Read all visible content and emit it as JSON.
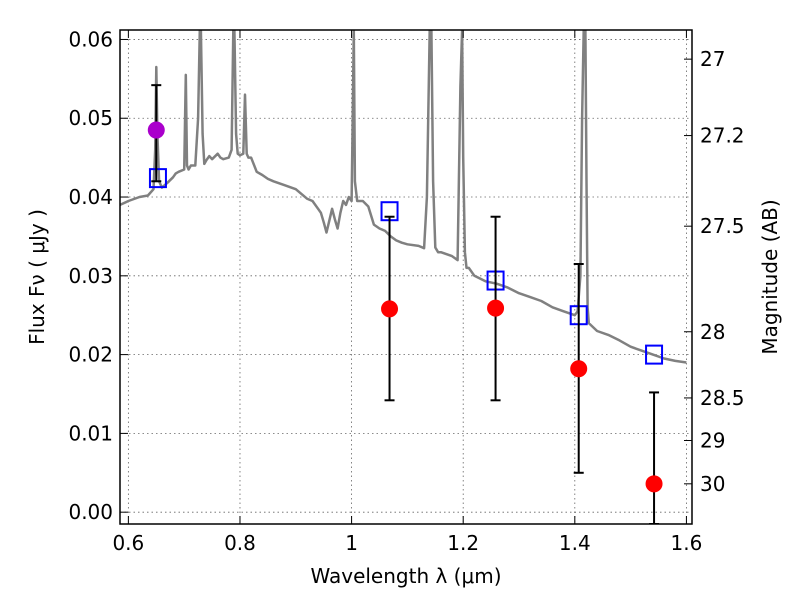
{
  "chart_data": {
    "type": "scatter",
    "title": "",
    "xlabel": "Wavelength  λ (μm)",
    "ylabel": "Flux  Fν  ( μJy )",
    "ylabel_right": "Magnitude (AB)",
    "xlim": [
      0.585,
      1.61
    ],
    "ylim": [
      -0.0015,
      0.0612
    ],
    "grid": true,
    "x_ticks": [
      0.6,
      0.8,
      1.0,
      1.2,
      1.4,
      1.6
    ],
    "x_tick_labels": [
      "0.6",
      "0.8",
      "1",
      "1.2",
      "1.4",
      "1.6"
    ],
    "y_ticks": [
      0.0,
      0.01,
      0.02,
      0.03,
      0.04,
      0.05,
      0.06
    ],
    "y_tick_labels": [
      "0.00",
      "0.01",
      "0.02",
      "0.03",
      "0.04",
      "0.05",
      "0.06"
    ],
    "right_ticks": [
      {
        "flux": 0.0575,
        "label": "27"
      },
      {
        "flux": 0.0478,
        "label": "27.2"
      },
      {
        "flux": 0.0363,
        "label": "27.5"
      },
      {
        "flux": 0.0229,
        "label": "28"
      },
      {
        "flux": 0.0145,
        "label": "28.5"
      },
      {
        "flux": 0.0091,
        "label": "29"
      },
      {
        "flux": 0.0036,
        "label": "30"
      }
    ],
    "series": [
      {
        "kind": "line",
        "color": "#808080",
        "x": [
          0.585,
          0.6,
          0.62,
          0.635,
          0.645,
          0.648,
          0.65,
          0.652,
          0.655,
          0.66,
          0.67,
          0.68,
          0.685,
          0.69,
          0.7,
          0.703,
          0.705,
          0.708,
          0.712,
          0.72,
          0.725,
          0.728,
          0.73,
          0.733,
          0.736,
          0.74,
          0.745,
          0.75,
          0.76,
          0.765,
          0.77,
          0.78,
          0.785,
          0.788,
          0.79,
          0.793,
          0.796,
          0.8,
          0.806,
          0.809,
          0.812,
          0.815,
          0.82,
          0.83,
          0.84,
          0.85,
          0.86,
          0.88,
          0.9,
          0.92,
          0.93,
          0.94,
          0.945,
          0.95,
          0.955,
          0.96,
          0.965,
          0.97,
          0.975,
          0.98,
          0.985,
          0.99,
          0.995,
          1.0,
          1.002,
          1.004,
          1.006,
          1.01,
          1.02,
          1.03,
          1.04,
          1.05,
          1.06,
          1.07,
          1.08,
          1.09,
          1.1,
          1.12,
          1.13,
          1.135,
          1.14,
          1.143,
          1.146,
          1.15,
          1.155,
          1.16,
          1.18,
          1.19,
          1.195,
          1.198,
          1.2,
          1.203,
          1.206,
          1.21,
          1.22,
          1.24,
          1.26,
          1.28,
          1.3,
          1.32,
          1.34,
          1.36,
          1.38,
          1.4,
          1.405,
          1.41,
          1.413,
          1.416,
          1.419,
          1.421,
          1.423,
          1.425,
          1.44,
          1.46,
          1.48,
          1.5,
          1.52,
          1.54,
          1.56,
          1.58,
          1.6
        ],
        "y": [
          0.039,
          0.0395,
          0.04,
          0.0402,
          0.041,
          0.046,
          0.0565,
          0.048,
          0.042,
          0.0412,
          0.0418,
          0.0425,
          0.043,
          0.0432,
          0.0435,
          0.0555,
          0.044,
          0.0435,
          0.044,
          0.044,
          0.05,
          0.0612,
          0.0612,
          0.048,
          0.0442,
          0.0447,
          0.0452,
          0.0448,
          0.0455,
          0.045,
          0.0448,
          0.045,
          0.046,
          0.0612,
          0.0612,
          0.048,
          0.0455,
          0.0453,
          0.0455,
          0.053,
          0.0455,
          0.045,
          0.045,
          0.0432,
          0.0428,
          0.0423,
          0.042,
          0.0415,
          0.041,
          0.0398,
          0.0395,
          0.0385,
          0.038,
          0.0368,
          0.0355,
          0.037,
          0.0385,
          0.0372,
          0.036,
          0.038,
          0.0395,
          0.039,
          0.04,
          0.0395,
          0.05,
          0.0612,
          0.042,
          0.0395,
          0.0395,
          0.0388,
          0.0365,
          0.036,
          0.0357,
          0.035,
          0.0345,
          0.0342,
          0.034,
          0.0338,
          0.0335,
          0.04,
          0.0612,
          0.0612,
          0.042,
          0.0336,
          0.033,
          0.033,
          0.0325,
          0.032,
          0.054,
          0.0612,
          0.045,
          0.033,
          0.031,
          0.031,
          0.03,
          0.0293,
          0.029,
          0.0285,
          0.0278,
          0.0273,
          0.0268,
          0.026,
          0.0255,
          0.025,
          0.0255,
          0.03,
          0.05,
          0.0612,
          0.0612,
          0.042,
          0.026,
          0.024,
          0.023,
          0.0225,
          0.0218,
          0.021,
          0.0205,
          0.02,
          0.0195,
          0.0192,
          0.019
        ]
      },
      {
        "kind": "marker",
        "marker": "square-open",
        "color": "#0000ff",
        "points": [
          [
            0.653,
            0.0424
          ],
          [
            1.068,
            0.0382
          ],
          [
            1.258,
            0.0294
          ],
          [
            1.407,
            0.025
          ],
          [
            1.542,
            0.02
          ]
        ]
      },
      {
        "kind": "marker",
        "marker": "circle",
        "color": "#ff0000",
        "points": [
          [
            1.068,
            0.0258
          ],
          [
            1.258,
            0.0259
          ],
          [
            1.407,
            0.0182
          ],
          [
            1.542,
            0.0036
          ]
        ],
        "errors": [
          [
            0.0142,
            0.0375
          ],
          [
            0.0142,
            0.0375
          ],
          [
            0.005,
            0.0315
          ],
          [
            -0.0015,
            0.0152
          ]
        ]
      },
      {
        "kind": "marker",
        "marker": "circle",
        "color": "#aa00cc",
        "points": [
          [
            0.65,
            0.0485
          ]
        ],
        "errors": [
          [
            0.042,
            0.0542
          ]
        ]
      }
    ]
  }
}
